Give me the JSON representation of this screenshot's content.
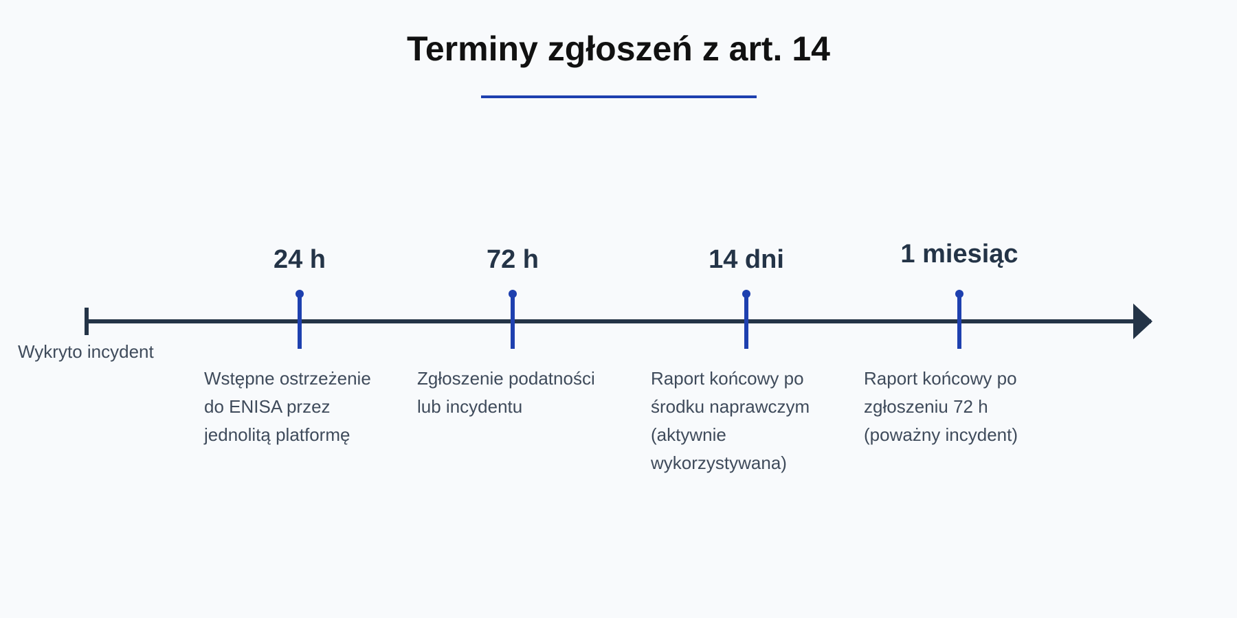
{
  "title": "Terminy zgłoszeń z art. 14",
  "timeline": {
    "start_label": "Wykryto incydent",
    "milestones": [
      {
        "label": "24 h",
        "description": "Wstępne ostrzeżenie do ENISA przez jednolitą platformę"
      },
      {
        "label": "72 h",
        "description": "Zgłoszenie podatności lub incydentu"
      },
      {
        "label": "14 dni",
        "description": "Raport końcowy po środku naprawczym (aktywnie wykorzystywana)"
      },
      {
        "label": "1 miesiąc",
        "description": "Raport końcowy po zgłoszeniu 72 h (poważny incydent)"
      }
    ]
  },
  "colors": {
    "accent": "#1e40af",
    "axis": "#243447",
    "text": "#3f4b5b",
    "background": "#f8fafc"
  }
}
